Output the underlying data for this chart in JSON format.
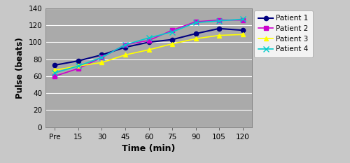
{
  "x_labels": [
    "Pre",
    "15",
    "30",
    "45",
    "60",
    "75",
    "90",
    "105",
    "120"
  ],
  "x_values": [
    0,
    1,
    2,
    3,
    4,
    5,
    6,
    7,
    8
  ],
  "patient1": [
    73,
    78,
    85,
    94,
    100,
    103,
    110,
    116,
    114
  ],
  "patient2": [
    60,
    69,
    82,
    97,
    102,
    114,
    124,
    126,
    126
  ],
  "patient3": [
    67,
    72,
    76,
    85,
    91,
    98,
    104,
    108,
    109
  ],
  "patient4": [
    64,
    72,
    82,
    97,
    105,
    112,
    123,
    125,
    127
  ],
  "colors": {
    "patient1": "#000080",
    "patient2": "#CC00CC",
    "patient3": "#FFFF00",
    "patient4": "#00CCCC"
  },
  "markers": {
    "patient1": "o",
    "patient2": "s",
    "patient3": "^",
    "patient4": "x"
  },
  "labels": [
    "Patient 1",
    "Patient 2",
    "Patient 3",
    "Patient 4"
  ],
  "xlabel": "Time (min)",
  "ylabel": "Pulse (beats)",
  "ylim": [
    0,
    140
  ],
  "yticks": [
    0,
    20,
    40,
    60,
    80,
    100,
    120,
    140
  ],
  "plot_bg_color": "#AAAAAA",
  "fig_bg_color": "#C8C8C8",
  "grid_color": "#BBBBBB"
}
